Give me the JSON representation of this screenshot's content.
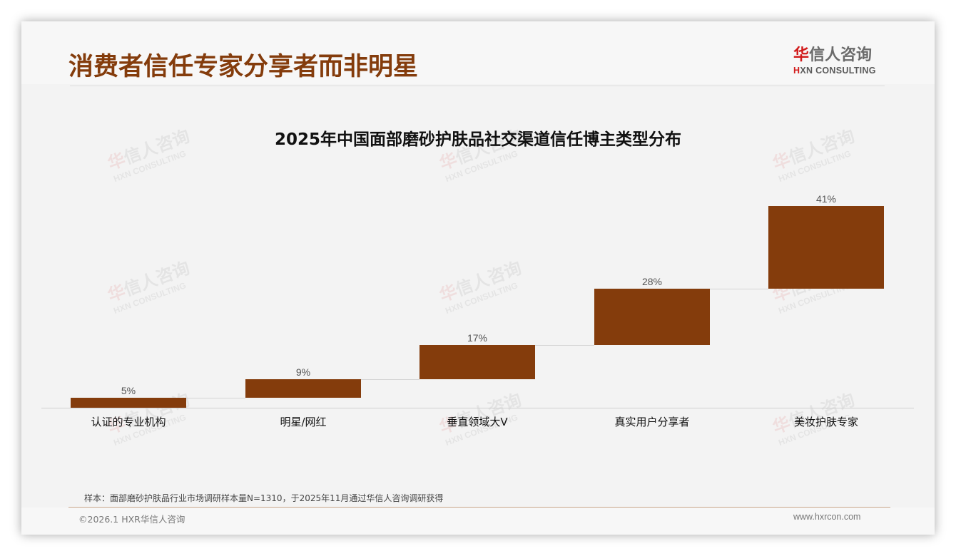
{
  "header": {
    "page_title": "消费者信任专家分享者而非明星",
    "logo": {
      "hua": "华",
      "rest": "信人咨询",
      "en_h": "H",
      "en_rest": "XN CONSULTING"
    }
  },
  "watermark": {
    "cn_hua": "华",
    "cn_rest": "信人咨询",
    "en": "HXN CONSULTING"
  },
  "chart_data": {
    "type": "bar",
    "subtype": "waterfall",
    "title": "2025年中国面部磨砂护肤品社交渠道信任博主类型分布",
    "categories": [
      "认证的专业机构",
      "明星/网红",
      "垂直领域大V",
      "真实用户分享者",
      "美妆护肤专家"
    ],
    "values": [
      5,
      9,
      17,
      28,
      41
    ],
    "value_labels": [
      "5%",
      "9%",
      "17%",
      "28%",
      "41%"
    ],
    "cumulative_start": [
      0,
      5,
      14,
      31,
      59
    ],
    "cumulative_end": [
      5,
      14,
      31,
      59,
      100
    ],
    "unit": "%",
    "xlabel": "",
    "ylabel": "",
    "ylim": [
      0,
      100
    ],
    "grid": false,
    "legend": null,
    "bar_color": "#843c0c"
  },
  "footer": {
    "note": "样本：面部磨砂护肤品行业市场调研样本量N=1310，于2025年11月通过华信人咨询调研获得",
    "copyright": "©2026.1 HXR华信人咨询",
    "website": "www.hxrcon.com"
  }
}
